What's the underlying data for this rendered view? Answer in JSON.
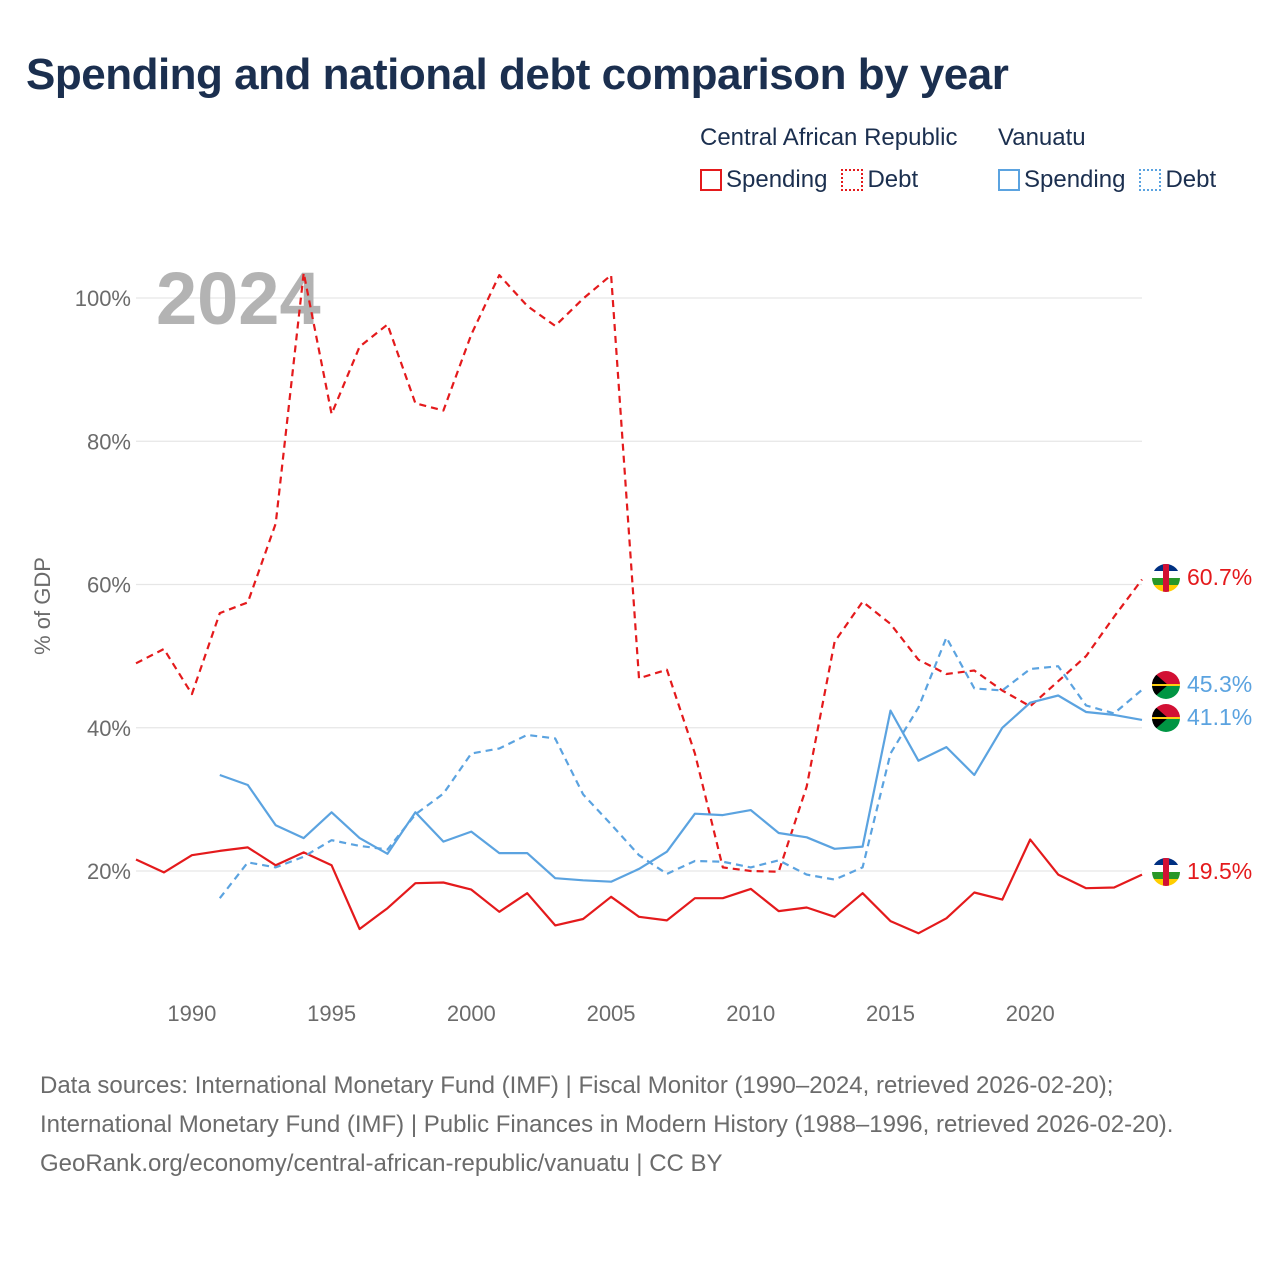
{
  "title": "Spending and national debt comparison by year",
  "legend": {
    "groups": [
      {
        "country": "Central African Republic",
        "spending_label": "Spending",
        "debt_label": "Debt",
        "color": "#e41a1c"
      },
      {
        "country": "Vanuatu",
        "spending_label": "Spending",
        "debt_label": "Debt",
        "color": "#5ba3e0"
      }
    ]
  },
  "footer": {
    "sources": "Data sources: International Monetary Fund (IMF) | Fiscal Monitor (1990–2024, retrieved 2026-02-20); International Monetary Fund (IMF) | Public Finances in Modern History (1988–1996, retrieved 2026-02-20).",
    "credit": "GeoRank.org/economy/central-african-republic/vanuatu | CC BY"
  },
  "chart_data": {
    "type": "line",
    "title": "Spending and national debt comparison by year",
    "watermark_year": "2024",
    "ylabel": "% of GDP",
    "xlabel": "",
    "xlim": [
      1988,
      2024
    ],
    "ylim": [
      6,
      110
    ],
    "x_ticks": [
      1990,
      1995,
      2000,
      2005,
      2010,
      2015,
      2020
    ],
    "y_ticks": [
      20,
      40,
      60,
      80,
      100
    ],
    "y_tick_labels": [
      "20%",
      "40%",
      "60%",
      "80%",
      "100%"
    ],
    "grid": true,
    "series": [
      {
        "name": "Central African Republic Spending",
        "country": "Central African Republic",
        "metric": "Spending",
        "color": "#e41a1c",
        "style": "solid",
        "end_label": "19.5%",
        "x": [
          1988,
          1989,
          1990,
          1991,
          1992,
          1993,
          1994,
          1995,
          1996,
          1997,
          1998,
          1999,
          2000,
          2001,
          2002,
          2003,
          2004,
          2005,
          2006,
          2007,
          2008,
          2009,
          2010,
          2011,
          2012,
          2013,
          2014,
          2015,
          2016,
          2017,
          2018,
          2019,
          2020,
          2021,
          2022,
          2023,
          2024
        ],
        "values": [
          21.6,
          19.8,
          22.2,
          22.8,
          23.3,
          20.8,
          22.6,
          20.8,
          11.9,
          14.8,
          18.3,
          18.4,
          17.4,
          14.3,
          16.9,
          12.4,
          13.3,
          16.4,
          13.6,
          13.1,
          16.2,
          16.2,
          17.5,
          14.4,
          14.9,
          13.6,
          16.9,
          13.0,
          11.3,
          13.4,
          17.0,
          16.0,
          24.4,
          19.5,
          17.6,
          17.7,
          19.5
        ]
      },
      {
        "name": "Central African Republic Debt",
        "country": "Central African Republic",
        "metric": "Debt",
        "color": "#e41a1c",
        "style": "dashed",
        "end_label": "60.7%",
        "x": [
          1988,
          1989,
          1990,
          1991,
          1992,
          1993,
          1994,
          1995,
          1996,
          1997,
          1998,
          1999,
          2000,
          2001,
          2002,
          2003,
          2004,
          2005,
          2006,
          2007,
          2008,
          2009,
          2010,
          2011,
          2012,
          2013,
          2014,
          2015,
          2016,
          2017,
          2018,
          2019,
          2020,
          2021,
          2022,
          2023,
          2024
        ],
        "values": [
          49.0,
          51.0,
          44.7,
          56.0,
          57.5,
          68.5,
          103.5,
          83.8,
          93.2,
          96.3,
          85.3,
          84.3,
          94.9,
          103.2,
          98.9,
          96.1,
          99.9,
          103.2,
          46.9,
          48.1,
          36.4,
          20.5,
          20.0,
          19.9,
          31.8,
          52.0,
          57.6,
          54.5,
          49.5,
          47.5,
          48.0,
          45.2,
          43.0,
          46.5,
          50.0,
          55.5,
          60.7
        ]
      },
      {
        "name": "Vanuatu Spending",
        "country": "Vanuatu",
        "metric": "Spending",
        "color": "#5ba3e0",
        "style": "solid",
        "end_label": "41.1%",
        "x": [
          1991,
          1992,
          1993,
          1994,
          1995,
          1996,
          1997,
          1998,
          1999,
          2000,
          2001,
          2002,
          2003,
          2004,
          2005,
          2006,
          2007,
          2008,
          2009,
          2010,
          2011,
          2012,
          2013,
          2014,
          2015,
          2016,
          2017,
          2018,
          2019,
          2020,
          2021,
          2022,
          2023,
          2024
        ],
        "values": [
          33.4,
          32.0,
          26.4,
          24.6,
          28.2,
          24.6,
          22.4,
          28.2,
          24.1,
          25.5,
          22.5,
          22.5,
          19.0,
          18.7,
          18.5,
          20.3,
          22.7,
          28.0,
          27.8,
          28.5,
          25.3,
          24.7,
          23.1,
          23.4,
          42.4,
          35.4,
          37.3,
          33.4,
          40.0,
          43.5,
          44.5,
          42.2,
          41.8,
          41.1
        ]
      },
      {
        "name": "Vanuatu Debt",
        "country": "Vanuatu",
        "metric": "Debt",
        "color": "#5ba3e0",
        "style": "dashed",
        "end_label": "45.3%",
        "x": [
          1991,
          1992,
          1993,
          1994,
          1995,
          1996,
          1997,
          1998,
          1999,
          2000,
          2001,
          2002,
          2003,
          2004,
          2005,
          2006,
          2007,
          2008,
          2009,
          2010,
          2011,
          2012,
          2013,
          2014,
          2015,
          2016,
          2017,
          2018,
          2019,
          2020,
          2021,
          2022,
          2023,
          2024
        ],
        "values": [
          16.2,
          21.2,
          20.5,
          22.0,
          24.3,
          23.5,
          23.0,
          27.9,
          30.8,
          36.4,
          37.1,
          39.0,
          38.5,
          30.7,
          26.5,
          22.2,
          19.6,
          21.4,
          21.3,
          20.5,
          21.5,
          19.5,
          18.8,
          20.5,
          36.4,
          42.8,
          52.6,
          45.5,
          45.2,
          48.2,
          48.6,
          43.1,
          42.0,
          45.3
        ]
      }
    ]
  }
}
